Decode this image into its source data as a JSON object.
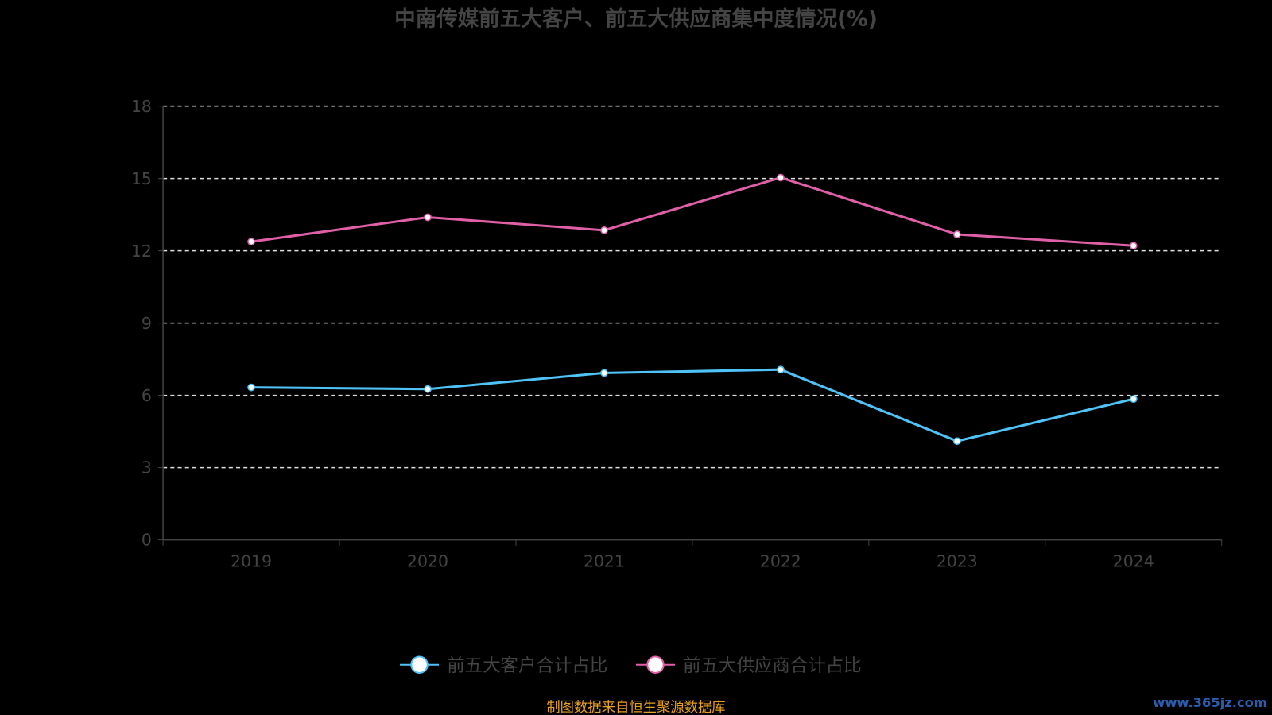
{
  "chart_data": {
    "type": "line",
    "title": "中南传媒前五大客户、前五大供应商集中度情况(%)",
    "categories": [
      "2019",
      "2020",
      "2021",
      "2022",
      "2023",
      "2024"
    ],
    "ylim": [
      0,
      18
    ],
    "yticks": [
      "0",
      "3",
      "6",
      "9",
      "12",
      "15",
      "18"
    ],
    "grid": true,
    "legend_position": "bottom",
    "series": [
      {
        "name": "前五大客户合计占比",
        "color": "#4fc3f7",
        "values": [
          6.33,
          6.26,
          6.93,
          7.07,
          4.1,
          5.85
        ]
      },
      {
        "name": "前五大供应商合计占比",
        "color": "#e060a8",
        "values": [
          12.38,
          13.39,
          12.85,
          15.04,
          12.68,
          12.21
        ]
      }
    ]
  },
  "footer": {
    "source": "制图数据来自恒生聚源数据库",
    "watermark": "www.365jz.com"
  }
}
